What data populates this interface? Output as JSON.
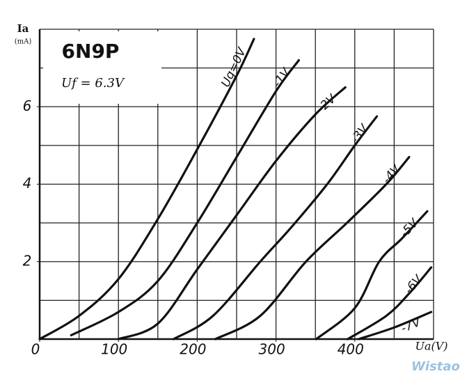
{
  "chart_data": {
    "type": "line",
    "title": "6N9P",
    "subtitle": "Uf = 6.3V",
    "y_label": "Ia",
    "y_unit": "(mA)",
    "x_label": "Ua(V)",
    "watermark": "Wistao",
    "xlim": [
      0,
      500
    ],
    "ylim": [
      0,
      8
    ],
    "xticks": [
      0,
      100,
      200,
      300,
      400
    ],
    "yticks": [
      2,
      4,
      6
    ],
    "xgrid": [
      50,
      100,
      150,
      200,
      250,
      300,
      350,
      400,
      450,
      500
    ],
    "ygrid": [
      1,
      2,
      3,
      4,
      5,
      6,
      7,
      8
    ],
    "series": [
      {
        "name": "Ug=0V",
        "color": "#111111",
        "x": [
          0,
          50,
          100,
          150,
          200,
          250,
          272
        ],
        "values": [
          0,
          0.6,
          1.55,
          3.1,
          4.9,
          6.8,
          7.75
        ]
      },
      {
        "name": "-1V",
        "color": "#111111",
        "x": [
          40,
          100,
          150,
          200,
          250,
          300,
          329
        ],
        "values": [
          0.1,
          0.7,
          1.5,
          3.0,
          4.7,
          6.4,
          7.2
        ]
      },
      {
        "name": "-2V",
        "color": "#111111",
        "x": [
          100,
          150,
          200,
          250,
          300,
          350,
          388
        ],
        "values": [
          0,
          0.4,
          1.8,
          3.2,
          4.6,
          5.8,
          6.5
        ]
      },
      {
        "name": "-3V",
        "color": "#111111",
        "x": [
          170,
          220,
          280,
          320,
          365,
          400,
          428
        ],
        "values": [
          0,
          0.6,
          2.0,
          2.9,
          4.0,
          5.0,
          5.75
        ]
      },
      {
        "name": "-4V",
        "color": "#111111",
        "x": [
          223,
          280,
          338,
          390,
          440,
          469
        ],
        "values": [
          0,
          0.6,
          2.0,
          3.0,
          4.0,
          4.7
        ]
      },
      {
        "name": "-5V",
        "color": "#111111",
        "x": [
          351,
          400,
          431,
          460,
          492
        ],
        "values": [
          0,
          0.8,
          2.0,
          2.6,
          3.3
        ]
      },
      {
        "name": "-6V",
        "color": "#111111",
        "x": [
          391,
          440,
          470,
          497
        ],
        "values": [
          0,
          0.6,
          1.2,
          1.85
        ]
      },
      {
        "name": "-7V",
        "color": "#111111",
        "x": [
          405,
          450,
          497
        ],
        "values": [
          0,
          0.3,
          0.7
        ]
      }
    ]
  }
}
